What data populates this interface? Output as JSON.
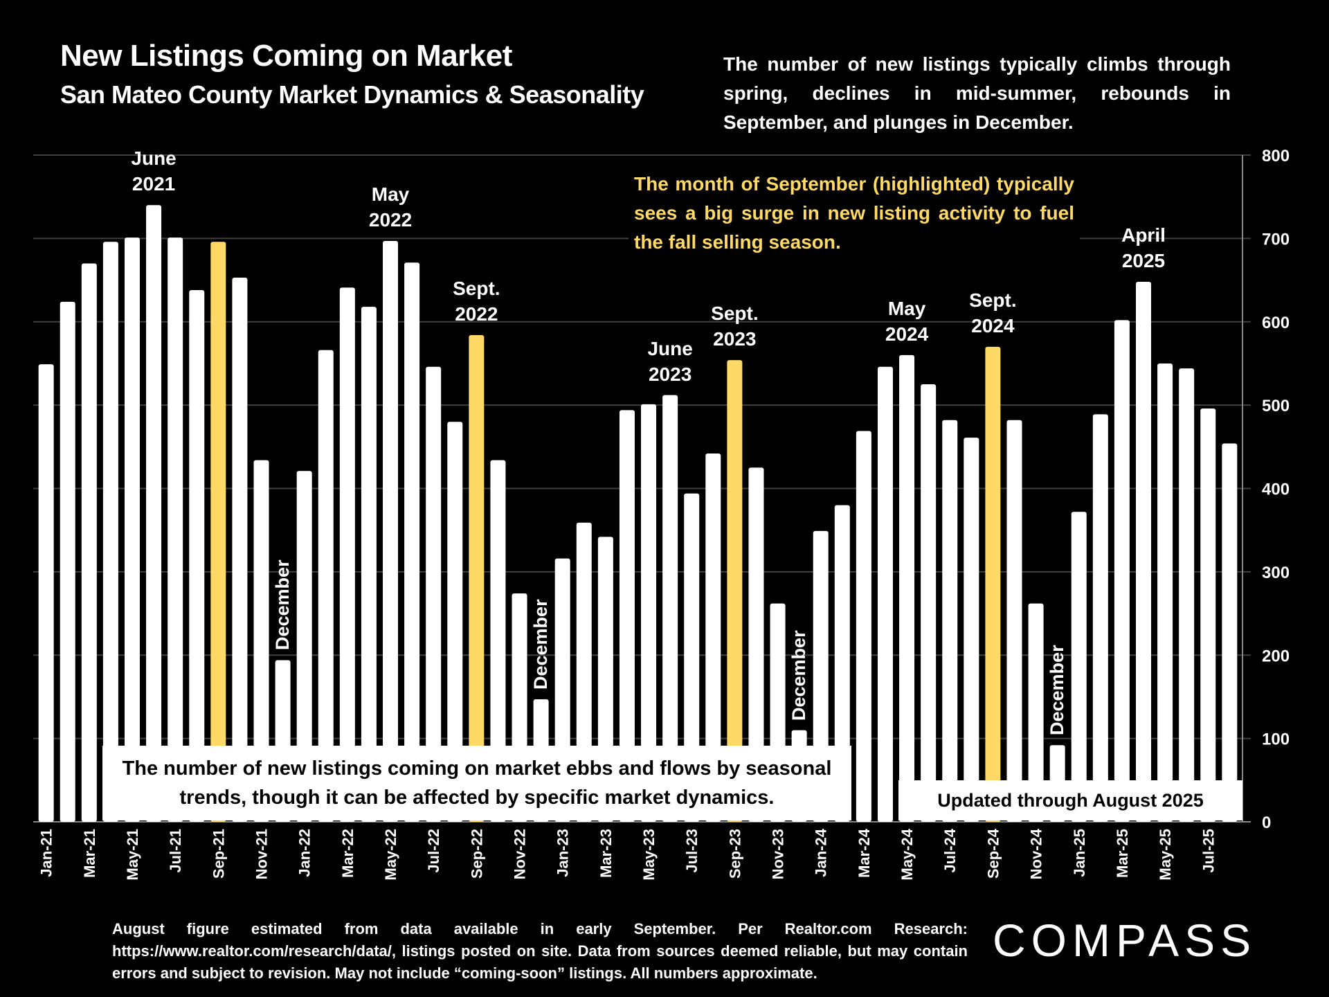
{
  "header": {
    "title": "New Listings Coming on Market",
    "subtitle": "San Mateo County Market Dynamics & Seasonality",
    "description": "The number of new listings typically climbs through spring, declines in mid-summer, rebounds in September, and plunges in December."
  },
  "callout": "The month of September (highlighted) typically sees a big surge in new listing activity to fuel the fall selling season.",
  "box_left": "The number of new listings coming on market ebbs and flows by seasonal trends, though it can be affected by specific market dynamics.",
  "box_right": "Updated through August 2025",
  "footer": "August figure estimated from data available in early September. Per Realtor.com Research: https://www.realtor.com/research/data/, listings posted on site. Data from sources deemed reliable, but may contain errors and subject to revision. May not include “coming-soon” listings. All numbers approximate.",
  "logo": "COMPASS",
  "colors": {
    "bar": "#FFFFFF",
    "highlight": "#FFD966",
    "background": "#000000",
    "grid": "#404040"
  },
  "chart_data": {
    "type": "bar",
    "title": "New Listings Coming on Market",
    "subtitle": "San Mateo County Market Dynamics & Seasonality",
    "xlabel": "",
    "ylabel": "",
    "ylim": [
      0,
      800
    ],
    "yticks": [
      0,
      100,
      200,
      300,
      400,
      500,
      600,
      700,
      800
    ],
    "y_axis_side": "right",
    "grid": true,
    "categories": [
      "Jan-21",
      "Feb-21",
      "Mar-21",
      "Apr-21",
      "May-21",
      "Jun-21",
      "Jul-21",
      "Aug-21",
      "Sep-21",
      "Oct-21",
      "Nov-21",
      "Dec-21",
      "Jan-22",
      "Feb-22",
      "Mar-22",
      "Apr-22",
      "May-22",
      "Jun-22",
      "Jul-22",
      "Aug-22",
      "Sep-22",
      "Oct-22",
      "Nov-22",
      "Dec-22",
      "Jan-23",
      "Feb-23",
      "Mar-23",
      "Apr-23",
      "May-23",
      "Jun-23",
      "Jul-23",
      "Aug-23",
      "Sep-23",
      "Oct-23",
      "Nov-23",
      "Dec-23",
      "Jan-24",
      "Feb-24",
      "Mar-24",
      "Apr-24",
      "May-24",
      "Jun-24",
      "Jul-24",
      "Aug-24",
      "Sep-24",
      "Oct-24",
      "Nov-24",
      "Dec-24",
      "Jan-25",
      "Feb-25",
      "Mar-25",
      "Apr-25",
      "May-25",
      "Jun-25",
      "Jul-25",
      "Aug-25"
    ],
    "tick_labels_shown": [
      "Jan-21",
      "Mar-21",
      "May-21",
      "Jul-21",
      "Sep-21",
      "Nov-21",
      "Jan-22",
      "Mar-22",
      "May-22",
      "Jul-22",
      "Sep-22",
      "Nov-22",
      "Jan-23",
      "Mar-23",
      "May-23",
      "Jul-23",
      "Sep-23",
      "Nov-23",
      "Jan-24",
      "Mar-24",
      "May-24",
      "Jul-24",
      "Sep-24",
      "Nov-24",
      "Jan-25",
      "Mar-25",
      "May-25",
      "Jul-25"
    ],
    "values": [
      549,
      624,
      670,
      696,
      701,
      740,
      701,
      638,
      696,
      653,
      434,
      194,
      421,
      566,
      641,
      618,
      697,
      671,
      546,
      480,
      584,
      434,
      274,
      147,
      316,
      359,
      342,
      494,
      501,
      512,
      394,
      442,
      554,
      425,
      262,
      110,
      349,
      380,
      469,
      546,
      560,
      525,
      482,
      461,
      570,
      482,
      262,
      92,
      372,
      489,
      602,
      648,
      550,
      544,
      496,
      454
    ],
    "highlighted": [
      "Sep-21",
      "Sep-22",
      "Sep-23",
      "Sep-24"
    ],
    "annotations": [
      {
        "target": "Jun-21",
        "text": [
          "June",
          "2021"
        ]
      },
      {
        "target": "May-22",
        "text": [
          "May",
          "2022"
        ]
      },
      {
        "target": "Sep-22",
        "text": [
          "Sept.",
          "2022"
        ]
      },
      {
        "target": "Jun-23",
        "text": [
          "June",
          "2023"
        ]
      },
      {
        "target": "Sep-23",
        "text": [
          "Sept.",
          "2023"
        ]
      },
      {
        "target": "May-24",
        "text": [
          "May",
          "2024"
        ]
      },
      {
        "target": "Sep-24",
        "text": [
          "Sept.",
          "2024"
        ]
      },
      {
        "target": "Apr-25",
        "text": [
          "April",
          "2025"
        ]
      }
    ],
    "december_labels": [
      {
        "target": "Dec-21",
        "text": "December"
      },
      {
        "target": "Dec-22",
        "text": "December"
      },
      {
        "target": "Dec-23",
        "text": "December"
      },
      {
        "target": "Dec-24",
        "text": "December"
      }
    ]
  }
}
